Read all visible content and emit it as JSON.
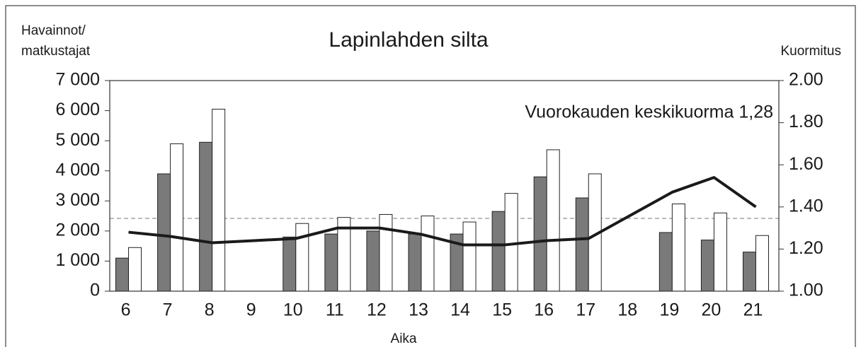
{
  "chart_data": {
    "type": "bar",
    "title": "Lapinlahden silta",
    "annotation": "Vuorokauden keskikuorma 1,28",
    "y_label_lines": [
      "Havainnot/",
      "matkustajat"
    ],
    "y2_label": "Kuormitus",
    "x_label": "Aika",
    "categories": [
      "6",
      "7",
      "8",
      "9",
      "10",
      "11",
      "12",
      "13",
      "14",
      "15",
      "16",
      "17",
      "18",
      "19",
      "20",
      "21"
    ],
    "series": [
      {
        "type": "bar",
        "color": "#7a7a7a",
        "values": [
          1100,
          3900,
          4950,
          null,
          1800,
          1900,
          2000,
          1900,
          1900,
          2650,
          3800,
          3100,
          null,
          1950,
          1700,
          1300
        ]
      },
      {
        "type": "bar",
        "color": "#ffffff",
        "values": [
          1450,
          4900,
          6050,
          null,
          2250,
          2450,
          2550,
          2500,
          2300,
          3250,
          4700,
          3900,
          null,
          2900,
          2600,
          1850
        ]
      },
      {
        "type": "line",
        "axis": "y2",
        "color": "#1a1a1a",
        "values": [
          1.28,
          1.26,
          1.23,
          1.24,
          1.25,
          1.3,
          1.3,
          1.27,
          1.22,
          1.22,
          1.24,
          1.25,
          1.36,
          1.47,
          1.54,
          1.4
        ]
      }
    ],
    "reference_line": 2420,
    "ylim": [
      0,
      7000
    ],
    "yticks": [
      0,
      {
        "value": 1000,
        "label": "1 000"
      },
      {
        "value": 2000,
        "label": "2 000"
      },
      {
        "value": 3000,
        "label": "3 000"
      },
      {
        "value": 4000,
        "label": "4 000"
      },
      {
        "value": 5000,
        "label": "5 000"
      },
      {
        "value": 6000,
        "label": "6 000"
      },
      {
        "value": 7000,
        "label": "7 000"
      }
    ],
    "y2lim": [
      1,
      2
    ],
    "y2ticks": [
      {
        "value": 1,
        "label": "1.00"
      },
      {
        "value": 1.2,
        "label": "1.20"
      },
      {
        "value": 1.4,
        "label": "1.40"
      },
      {
        "value": 1.6,
        "label": "1.60"
      },
      {
        "value": 1.8,
        "label": "1.80"
      },
      {
        "value": 2,
        "label": "2.00"
      }
    ],
    "grid": false
  }
}
